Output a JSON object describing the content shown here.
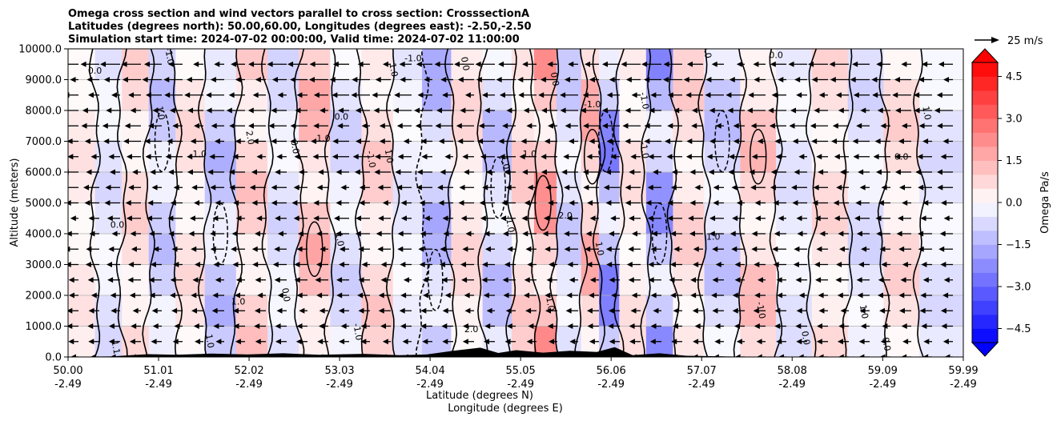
{
  "chart_data": {
    "type": "heatmap",
    "title_lines": [
      "Omega cross section and wind vectors parallel to cross section: CrosssectionA",
      "Latitudes (degrees north): 50.00,60.00, Longitudes (degrees east): -2.50,-2.50",
      "Simulation start time: 2024-07-02 00:00:00, Valid time: 2024-07-02 11:00:00"
    ],
    "ylabel": "Altitude (meters)",
    "xlabel_lines": [
      "Latitude (degrees N)",
      "Longitude (degrees E)"
    ],
    "ylim": [
      0,
      10000
    ],
    "xlim": [
      50.0,
      59.99
    ],
    "y_ticks": [
      {
        "value": 0,
        "label": "0.0"
      },
      {
        "value": 1000,
        "label": "1000.0"
      },
      {
        "value": 2000,
        "label": "2000.0"
      },
      {
        "value": 3000,
        "label": "3000.0"
      },
      {
        "value": 4000,
        "label": "4000.0"
      },
      {
        "value": 5000,
        "label": "5000.0"
      },
      {
        "value": 6000,
        "label": "6000.0"
      },
      {
        "value": 7000,
        "label": "7000.0"
      },
      {
        "value": 8000,
        "label": "8000.0"
      },
      {
        "value": 9000,
        "label": "9000.0"
      },
      {
        "value": 10000,
        "label": "10000.0"
      }
    ],
    "x_ticks": [
      {
        "value": 50.0,
        "lat": "50.00",
        "lon": "-2.49"
      },
      {
        "value": 51.01,
        "lat": "51.01",
        "lon": "-2.49"
      },
      {
        "value": 52.02,
        "lat": "52.02",
        "lon": "-2.49"
      },
      {
        "value": 53.03,
        "lat": "53.03",
        "lon": "-2.49"
      },
      {
        "value": 54.04,
        "lat": "54.04",
        "lon": "-2.49"
      },
      {
        "value": 55.05,
        "lat": "55.05",
        "lon": "-2.49"
      },
      {
        "value": 56.06,
        "lat": "56.06",
        "lon": "-2.49"
      },
      {
        "value": 57.07,
        "lat": "57.07",
        "lon": "-2.49"
      },
      {
        "value": 58.08,
        "lat": "58.08",
        "lon": "-2.49"
      },
      {
        "value": 59.09,
        "lat": "59.09",
        "lon": "-2.49"
      },
      {
        "value": 59.99,
        "lat": "59.99",
        "lon": "-2.49"
      }
    ],
    "grid": true,
    "colorbar": {
      "label": "Omega Pa/s",
      "range": [
        -5.0,
        5.0
      ],
      "ticks": [
        {
          "value": 4.5,
          "label": "4.5"
        },
        {
          "value": 3.0,
          "label": "3.0"
        },
        {
          "value": 1.5,
          "label": "1.5"
        },
        {
          "value": 0.0,
          "label": "0.0"
        },
        {
          "value": -1.5,
          "label": "−1.5"
        },
        {
          "value": -3.0,
          "label": "−3.0"
        },
        {
          "value": -4.5,
          "label": "−4.5"
        }
      ],
      "levels": 20,
      "cmap": "bwr",
      "extend": "both"
    },
    "quiver_key": {
      "label": "25 m/s",
      "speed": 25
    },
    "wind_vector_heights": [
      0,
      500,
      1000,
      1500,
      2000,
      2500,
      3000,
      3500,
      4000,
      4500,
      5000,
      5500,
      6000,
      6500,
      7000,
      7500,
      8000,
      8500,
      9000,
      9500
    ],
    "wind_vector_count_per_row": 43,
    "field_bands": [
      {
        "lat": 50.15,
        "omega": 0.6
      },
      {
        "lat": 50.45,
        "omega": -0.8
      },
      {
        "lat": 50.75,
        "omega": 1.0
      },
      {
        "lat": 51.05,
        "omega": -1.4
      },
      {
        "lat": 51.35,
        "omega": 0.8
      },
      {
        "lat": 51.7,
        "omega": -1.6
      },
      {
        "lat": 52.05,
        "omega": 1.3
      },
      {
        "lat": 52.4,
        "omega": -0.9
      },
      {
        "lat": 52.75,
        "omega": 1.8
      },
      {
        "lat": 53.1,
        "omega": -1.0
      },
      {
        "lat": 53.45,
        "omega": 1.2
      },
      {
        "lat": 53.8,
        "omega": -0.6
      },
      {
        "lat": 54.1,
        "omega": -1.8
      },
      {
        "lat": 54.45,
        "omega": 0.9
      },
      {
        "lat": 54.8,
        "omega": -1.5
      },
      {
        "lat": 55.1,
        "omega": 1.2
      },
      {
        "lat": 55.3,
        "omega": 2.4
      },
      {
        "lat": 55.6,
        "omega": -1.2
      },
      {
        "lat": 55.85,
        "omega": 1.9
      },
      {
        "lat": 56.0,
        "omega": -2.8
      },
      {
        "lat": 56.3,
        "omega": 0.7
      },
      {
        "lat": 56.6,
        "omega": -2.5
      },
      {
        "lat": 56.9,
        "omega": 1.1
      },
      {
        "lat": 57.3,
        "omega": -1.4
      },
      {
        "lat": 57.7,
        "omega": 1.5
      },
      {
        "lat": 58.1,
        "omega": -0.7
      },
      {
        "lat": 58.5,
        "omega": 0.9
      },
      {
        "lat": 58.9,
        "omega": -0.9
      },
      {
        "lat": 59.3,
        "omega": 1.0
      },
      {
        "lat": 59.7,
        "omega": -0.8
      }
    ],
    "terrain": [
      {
        "lat": 50.0,
        "h": 0
      },
      {
        "lat": 50.5,
        "h": 20
      },
      {
        "lat": 50.7,
        "h": 60
      },
      {
        "lat": 50.9,
        "h": 90
      },
      {
        "lat": 51.2,
        "h": 70
      },
      {
        "lat": 51.6,
        "h": 110
      },
      {
        "lat": 52.0,
        "h": 80
      },
      {
        "lat": 52.4,
        "h": 120
      },
      {
        "lat": 52.8,
        "h": 70
      },
      {
        "lat": 53.3,
        "h": 100
      },
      {
        "lat": 53.7,
        "h": 60
      },
      {
        "lat": 54.0,
        "h": 80
      },
      {
        "lat": 54.3,
        "h": 200
      },
      {
        "lat": 54.6,
        "h": 300
      },
      {
        "lat": 54.8,
        "h": 130
      },
      {
        "lat": 55.0,
        "h": 220
      },
      {
        "lat": 55.3,
        "h": 140
      },
      {
        "lat": 55.6,
        "h": 200
      },
      {
        "lat": 55.9,
        "h": 160
      },
      {
        "lat": 56.1,
        "h": 320
      },
      {
        "lat": 56.3,
        "h": 60
      },
      {
        "lat": 56.6,
        "h": 120
      },
      {
        "lat": 56.9,
        "h": 40
      },
      {
        "lat": 57.3,
        "h": 20
      },
      {
        "lat": 57.8,
        "h": 0
      },
      {
        "lat": 59.99,
        "h": 0
      }
    ],
    "contour_labels": [
      {
        "lat": 50.3,
        "alt": 9200,
        "text": "0.0"
      },
      {
        "lat": 51.1,
        "alt": 9750,
        "text": "-1.0"
      },
      {
        "lat": 51.0,
        "alt": 7900,
        "text": "1.0"
      },
      {
        "lat": 51.45,
        "alt": 6500,
        "text": "-1.0"
      },
      {
        "lat": 52.0,
        "alt": 7100,
        "text": "2.0"
      },
      {
        "lat": 52.5,
        "alt": 6800,
        "text": "0.0"
      },
      {
        "lat": 53.05,
        "alt": 7700,
        "text": "0.0"
      },
      {
        "lat": 53.35,
        "alt": 6400,
        "text": "-1.0"
      },
      {
        "lat": 53.6,
        "alt": 9300,
        "text": "1.0"
      },
      {
        "lat": 53.85,
        "alt": 9600,
        "text": "-1.0"
      },
      {
        "lat": 54.4,
        "alt": 9500,
        "text": "0.0"
      },
      {
        "lat": 55.4,
        "alt": 9000,
        "text": "0.0"
      },
      {
        "lat": 55.85,
        "alt": 8100,
        "text": "-1.0"
      },
      {
        "lat": 56.4,
        "alt": 8300,
        "text": "-1.0"
      },
      {
        "lat": 57.1,
        "alt": 9900,
        "text": "0.0"
      },
      {
        "lat": 57.9,
        "alt": 9700,
        "text": "0.0"
      },
      {
        "lat": 51.55,
        "alt": 500,
        "text": "1.0"
      },
      {
        "lat": 50.5,
        "alt": 300,
        "text": "1.1"
      },
      {
        "lat": 50.55,
        "alt": 4200,
        "text": "0.0"
      },
      {
        "lat": 53.0,
        "alt": 3800,
        "text": "1.0"
      },
      {
        "lat": 54.9,
        "alt": 4300,
        "text": "-1.0"
      },
      {
        "lat": 55.55,
        "alt": 4500,
        "text": "2.0"
      },
      {
        "lat": 55.35,
        "alt": 1700,
        "text": "1.0"
      },
      {
        "lat": 55.9,
        "alt": 3500,
        "text": "1.0"
      },
      {
        "lat": 57.2,
        "alt": 3800,
        "text": "1.0"
      },
      {
        "lat": 58.85,
        "alt": 1450,
        "text": "1.0"
      },
      {
        "lat": 59.55,
        "alt": 7900,
        "text": "1.0"
      },
      {
        "lat": 59.3,
        "alt": 6400,
        "text": "0.0"
      },
      {
        "lat": 57.7,
        "alt": 1500,
        "text": "-1.0"
      },
      {
        "lat": 53.2,
        "alt": 800,
        "text": "-1.0"
      },
      {
        "lat": 54.5,
        "alt": 800,
        "text": "2.0"
      },
      {
        "lat": 58.2,
        "alt": 600,
        "text": "0.0"
      },
      {
        "lat": 59.1,
        "alt": 400,
        "text": "0.0"
      },
      {
        "lat": 51.9,
        "alt": 1700,
        "text": "1.0"
      },
      {
        "lat": 52.4,
        "alt": 2000,
        "text": "0.0"
      },
      {
        "lat": 56.4,
        "alt": 6700,
        "text": "-1.0"
      },
      {
        "lat": 55.15,
        "alt": 6500,
        "text": "1.0"
      },
      {
        "lat": 54.85,
        "alt": 6300,
        "text": "1.0"
      },
      {
        "lat": 53.55,
        "alt": 6500,
        "text": "1.0"
      },
      {
        "lat": 52.85,
        "alt": 7000,
        "text": "1.0"
      }
    ]
  }
}
